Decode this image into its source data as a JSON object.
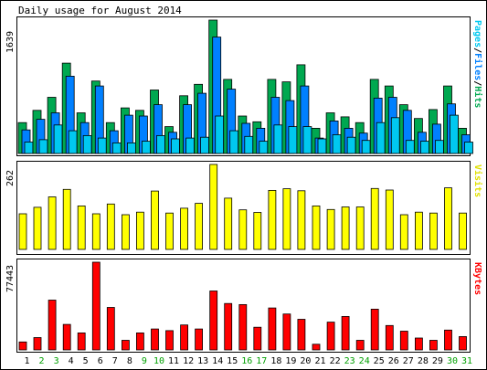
{
  "title": "Daily usage for August 2014",
  "colors": {
    "background": "#ffffff",
    "frame_bg": "#ffffff",
    "hits": "#00a850",
    "files": "#0080ff",
    "pages": "#00c8f0",
    "visits": "#ffff00",
    "kbytes": "#ff0000",
    "weekday": "#000000",
    "weekend": "#00a000",
    "outline": "#000000"
  },
  "side_labels": {
    "pages": "Pages",
    "files": "Files",
    "hits": "Hits",
    "separator": "/",
    "visits": "Visits",
    "kbytes": "KBytes"
  },
  "chart_data": [
    {
      "type": "bar",
      "panel": "hits-files-pages",
      "ymax_label": "1639",
      "ylim": [
        0,
        1639
      ],
      "categories": [
        "1",
        "2",
        "3",
        "4",
        "5",
        "6",
        "7",
        "8",
        "9",
        "10",
        "11",
        "12",
        "13",
        "14",
        "15",
        "16",
        "17",
        "18",
        "19",
        "20",
        "21",
        "22",
        "23",
        "24",
        "25",
        "26",
        "27",
        "28",
        "29",
        "30",
        "31"
      ],
      "weekend_days": [
        2,
        3,
        9,
        10,
        16,
        17,
        23,
        24,
        30,
        31
      ],
      "series": [
        {
          "name": "Hits",
          "values": [
            380,
            530,
            690,
            1110,
            500,
            890,
            380,
            560,
            530,
            780,
            330,
            710,
            850,
            1639,
            910,
            460,
            390,
            910,
            880,
            1090,
            310,
            500,
            450,
            380,
            910,
            830,
            600,
            430,
            540,
            830,
            310
          ]
        },
        {
          "name": "Files",
          "values": [
            290,
            420,
            500,
            950,
            380,
            830,
            280,
            470,
            460,
            600,
            260,
            600,
            740,
            1430,
            790,
            370,
            310,
            690,
            650,
            830,
            190,
            400,
            310,
            250,
            680,
            690,
            530,
            260,
            360,
            610,
            230
          ]
        },
        {
          "name": "Pages",
          "values": [
            140,
            170,
            350,
            280,
            220,
            190,
            130,
            130,
            150,
            220,
            180,
            190,
            200,
            460,
            280,
            210,
            150,
            350,
            330,
            330,
            180,
            230,
            200,
            160,
            380,
            440,
            160,
            150,
            160,
            470,
            140
          ]
        }
      ]
    },
    {
      "type": "bar",
      "panel": "visits",
      "ymax_label": "262",
      "ylim": [
        0,
        262
      ],
      "categories": [
        "1",
        "2",
        "3",
        "4",
        "5",
        "6",
        "7",
        "8",
        "9",
        "10",
        "11",
        "12",
        "13",
        "14",
        "15",
        "16",
        "17",
        "18",
        "19",
        "20",
        "21",
        "22",
        "23",
        "24",
        "25",
        "26",
        "27",
        "28",
        "29",
        "30",
        "31"
      ],
      "series": [
        {
          "name": "Visits",
          "values": [
            110,
            130,
            162,
            185,
            134,
            110,
            140,
            107,
            115,
            180,
            112,
            127,
            142,
            262,
            158,
            122,
            114,
            182,
            187,
            181,
            134,
            123,
            131,
            131,
            188,
            183,
            107,
            115,
            112,
            190,
            112
          ]
        }
      ]
    },
    {
      "type": "bar",
      "panel": "kbytes",
      "ymax_label": "77443",
      "ylim": [
        0,
        77443
      ],
      "categories": [
        "1",
        "2",
        "3",
        "4",
        "5",
        "6",
        "7",
        "8",
        "9",
        "10",
        "11",
        "12",
        "13",
        "14",
        "15",
        "16",
        "17",
        "18",
        "19",
        "20",
        "21",
        "22",
        "23",
        "24",
        "25",
        "26",
        "27",
        "28",
        "29",
        "30",
        "31"
      ],
      "series": [
        {
          "name": "KBytes",
          "values": [
            7000,
            10900,
            44000,
            22500,
            15000,
            77443,
            37500,
            8500,
            15000,
            18500,
            17000,
            22000,
            18500,
            52000,
            41000,
            40000,
            20000,
            37000,
            31700,
            27000,
            5000,
            24500,
            29500,
            8500,
            36000,
            21500,
            16500,
            10500,
            8500,
            17500,
            11800
          ]
        }
      ]
    }
  ]
}
